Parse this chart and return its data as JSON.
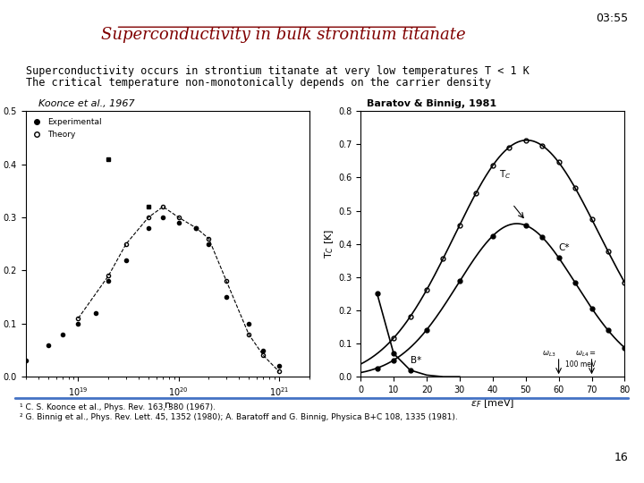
{
  "title": "Superconductivity in bulk strontium titanate",
  "timestamp": "03:55",
  "page_number": "16",
  "subtitle_line1": "Superconductivity occurs in strontium titanate at very low temperatures T < 1 K",
  "subtitle_line2": "The critical temperature non-monotonically depends on the carrier density",
  "left_label": "Koonce et al., 1967",
  "right_label": "Baratov & Binnig, 1981",
  "footnote1": "¹ C. S. Koonce et al., Phys. Rev. 163, 380 (1967).",
  "footnote2": "² G. Binnig et al., Phys. Rev. Lett. 45, 1352 (1980); A. Baratoff and G. Binnig, Physica B+C 108, 1335 (1981).",
  "bg_color": "#ffffff",
  "title_color": "#800000",
  "text_color": "#000000",
  "footer_line_color": "#4472c4"
}
